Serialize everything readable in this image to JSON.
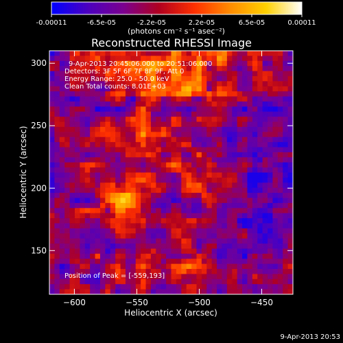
{
  "colorbar": {
    "tick_labels": [
      "-0.00011",
      "-6.5e-05",
      "-2.2e-05",
      "2.2e-05",
      "6.5e-05",
      "0.00011"
    ],
    "unit_label": "(photons cm⁻² s⁻¹ asec⁻²)",
    "colormap": [
      "#0000ff",
      "#4b00c0",
      "#7a0090",
      "#b00020",
      "#ff3000",
      "#ff8c00",
      "#ffd000",
      "#ffffff"
    ]
  },
  "chart_data": {
    "type": "heatmap",
    "title": "Reconstructed RHESSI Image",
    "xlabel": "Heliocentric X (arcsec)",
    "ylabel": "Heliocentric Y (arcsec)",
    "xlim": [
      -620,
      -425
    ],
    "ylim": [
      115,
      310
    ],
    "x_ticks": [
      -600,
      -550,
      -500,
      -450
    ],
    "y_ticks": [
      150,
      200,
      250,
      300
    ],
    "x_tick_labels": [
      "−600",
      "−550",
      "−500",
      "−450"
    ],
    "y_tick_labels": [
      "150",
      "200",
      "250",
      "300"
    ],
    "value_range": [
      -0.00011,
      0.00011
    ],
    "peak_position": [
      -559,
      193
    ],
    "annotations": [
      "9-Apr-2013 20:45:06.000 to 20:51:06.000",
      "Detectors: 3F 5F 6F 7F 8F 9F, Att 0",
      "Energy Range: 25.0 - 50.0 keV",
      "Clean     Total counts: 8.01E+03",
      "Position of Peak = [-559,193]"
    ],
    "timestamp": "9-Apr-2013 20:53"
  }
}
